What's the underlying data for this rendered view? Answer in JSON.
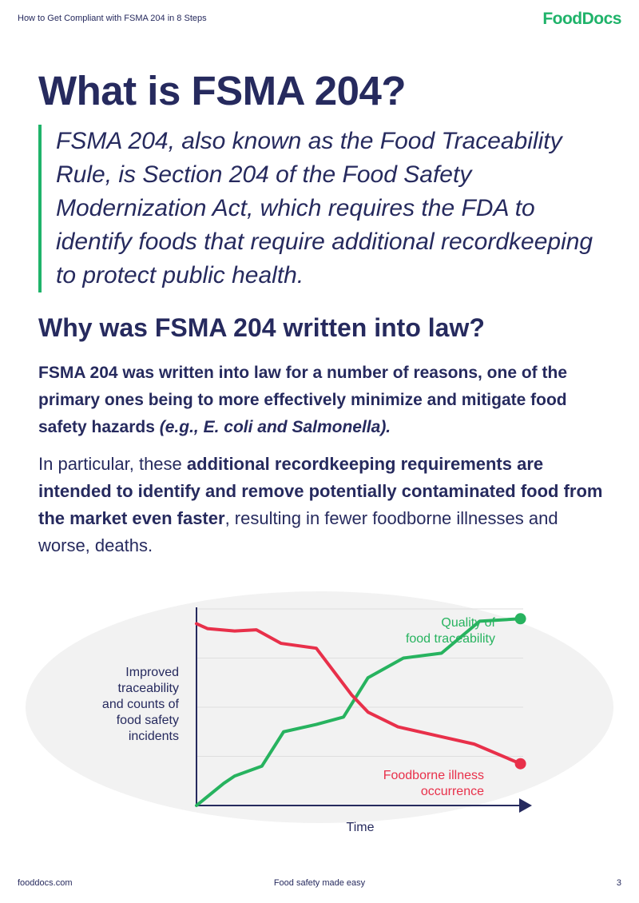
{
  "header": {
    "title": "How to Get Compliant with FSMA 204 in 8 Steps",
    "logo_text": "FoodDocs"
  },
  "main": {
    "title": "What is FSMA 204?",
    "quote": "FSMA 204, also known as the Food Traceability Rule, is Section 204 of the Food Safety Modernization Act, which requires the FDA to identify foods that require additional recordkeeping to protect public health.",
    "section_heading": "Why was FSMA 204 written into law?",
    "para1_text": "FSMA 204 was written into law for a number of reasons, one of the primary ones being to more effectively minimize and mitigate food safety hazards ",
    "para1_emphasis": "(e.g., E. coli and Salmonella).",
    "para2_intro": "In particular, these ",
    "para2_bold": "additional recordkeeping requirements are intended to identify and remove potentially contaminated food from the market even faster",
    "para2_outro": ", resulting in fewer foodborne illnesses and worse, deaths."
  },
  "chart_data": {
    "type": "line",
    "xlabel": "Time",
    "ylabel": "Improved traceability and counts of food safety incidents",
    "ylabel_lines": [
      "Improved",
      "traceability",
      "and counts of",
      "food safety",
      "incidents"
    ],
    "grid": true,
    "x": [
      0,
      1,
      2,
      3,
      4,
      5,
      6,
      7,
      8,
      9,
      10,
      11,
      12
    ],
    "series": [
      {
        "name": "Quality of food traceability",
        "name_lines": [
          "Quality of",
          "food traceability"
        ],
        "color": "#27b35f",
        "x": [
          0,
          1,
          1.4,
          2.4,
          3.2,
          4.4,
          5.4,
          6.3,
          7.6,
          9,
          10.4,
          11.9
        ],
        "values": [
          0,
          9,
          12,
          16,
          30,
          33,
          36,
          52,
          60,
          62,
          75,
          76
        ]
      },
      {
        "name": "Foodborne illness occurrence",
        "name_lines": [
          "Foodborne illness",
          "occurrence"
        ],
        "color": "#e8304a",
        "x": [
          0,
          0.4,
          1.4,
          2.2,
          3.1,
          4.4,
          5.7,
          6.3,
          7.4,
          9,
          10.2,
          11.9
        ],
        "values": [
          74,
          72,
          71,
          71.5,
          66,
          64,
          45,
          38,
          32,
          28,
          25,
          17
        ]
      }
    ],
    "ylim": [
      0,
      80
    ],
    "xlim": [
      0,
      12
    ]
  },
  "footer": {
    "left": "fooddocs.com",
    "center": "Food safety made easy",
    "page": "3"
  }
}
